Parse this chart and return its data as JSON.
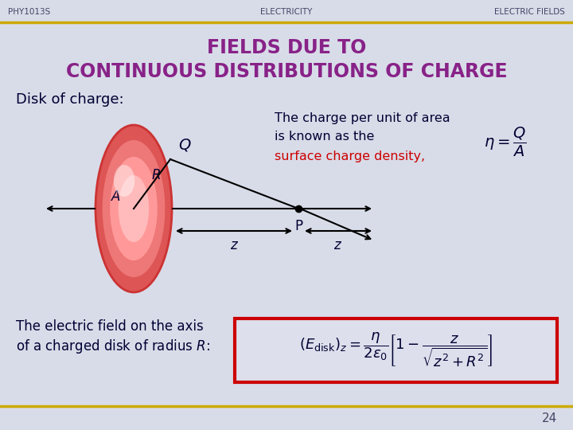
{
  "bg_color": "#d8dce8",
  "header_left": "PHY1013S",
  "header_center": "ELECTRICITY",
  "header_right": "ELECTRIC FIELDS",
  "header_color": "#444466",
  "header_line_color": "#ccaa00",
  "title_line1": "FIELDS DUE TO",
  "title_line2": "CONTINUOUS DISTRIBUTIONS OF CHARGE",
  "title_color": "#882288",
  "disk_label": "Disk of charge:",
  "disk_label_color": "#000033",
  "desc_line1": "The charge per unit of area",
  "desc_line2": "is known as the",
  "desc_line3": "surface charge density,",
  "desc_color": "#000033",
  "desc_red_color": "#cc0000",
  "bottom_text1": "The electric field on the axis",
  "bottom_text2": "of a charged disk of radius ",
  "bottom_color": "#000033",
  "formula_box_color": "#cc0000",
  "formula_bg": "#dde0ec",
  "page_number": "24",
  "disk_color_outer": "#ee6666",
  "disk_color_inner": "#ffaaaa",
  "disk_color_highlight": "#ffdddd",
  "disk_color_edge": "#cc3333"
}
